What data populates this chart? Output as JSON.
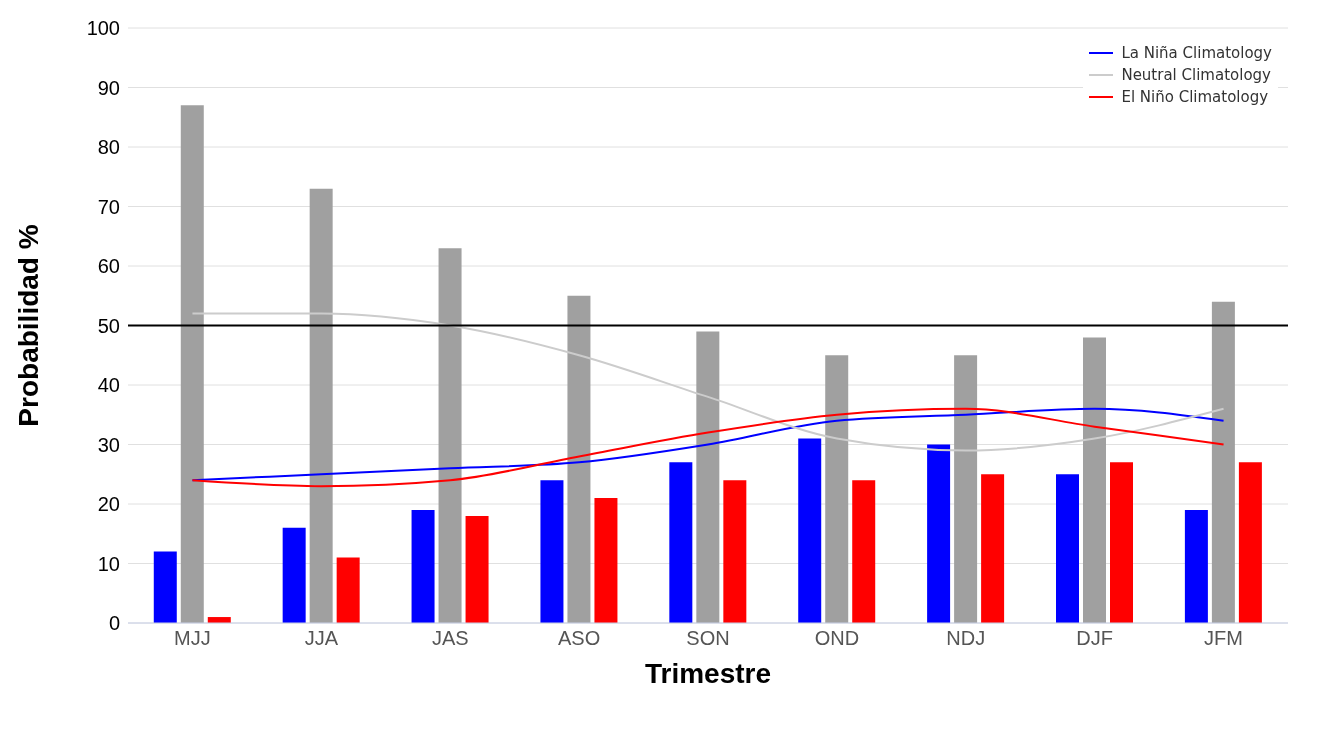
{
  "chart_data": {
    "type": "bar",
    "xlabel": "Trimestre",
    "ylabel": "Probabilidad %",
    "categories": [
      "MJJ",
      "JJA",
      "JAS",
      "ASO",
      "SON",
      "OND",
      "NDJ",
      "DJF",
      "JFM"
    ],
    "series": [
      {
        "color": "#0000ff",
        "values": [
          12,
          16,
          19,
          24,
          27,
          31,
          30,
          25,
          19
        ]
      },
      {
        "color": "#a0a0a0",
        "values": [
          87,
          73,
          63,
          55,
          49,
          45,
          45,
          48,
          54
        ]
      },
      {
        "color": "#ff0000",
        "values": [
          1,
          11,
          18,
          21,
          24,
          24,
          25,
          27,
          27
        ]
      },
      {
        "type": "line",
        "name": "La Niña Climatology",
        "color": "#0000ff",
        "values": [
          24,
          25,
          26,
          27,
          30,
          34,
          35,
          36,
          34
        ]
      },
      {
        "type": "line",
        "name": "Neutral Climatology",
        "color": "#cccccc",
        "values": [
          52,
          52,
          50,
          45,
          38,
          31,
          29,
          31,
          36
        ]
      },
      {
        "type": "line",
        "name": "El Niño Climatology",
        "color": "#ff0000",
        "values": [
          24,
          23,
          24,
          28,
          32,
          35,
          36,
          33,
          30
        ]
      }
    ],
    "ylim": [
      0,
      100
    ],
    "yticks": [
      0,
      10,
      20,
      30,
      40,
      50,
      60,
      70,
      80,
      90,
      100
    ],
    "grid": "y",
    "legend": "top right",
    "marker": "none",
    "line_style": "solid",
    "ref_lines": [
      {
        "axis": "y",
        "value": 50,
        "color": "#000000"
      }
    ]
  }
}
